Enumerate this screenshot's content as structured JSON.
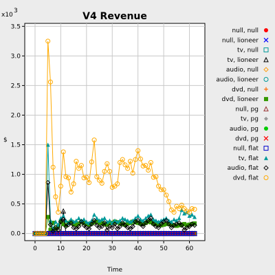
{
  "chart_data": {
    "type": "line",
    "title": "V4 Revenue",
    "xlabel": "Time",
    "ylabel": "$",
    "y_exponent": "x10",
    "y_exponent_power": "3",
    "xlim": [
      -4,
      66
    ],
    "ylim": [
      -120,
      3550
    ],
    "x_ticks": [
      0,
      10,
      20,
      30,
      40,
      50,
      60
    ],
    "x_tick_labels": [
      "0",
      "10",
      "20",
      "30",
      "40",
      "50",
      "60"
    ],
    "y_ticks": [
      0,
      500,
      1000,
      1500,
      2000,
      2500,
      3000,
      3500
    ],
    "y_tick_labels": [
      "0.0",
      "0.5",
      "1.0",
      "1.5",
      "2.0",
      "2.5",
      "3.0",
      "3.5"
    ],
    "grid": true,
    "legend_position": "right",
    "x": [
      0,
      1,
      2,
      3,
      4,
      5,
      6,
      7,
      8,
      9,
      10,
      11,
      12,
      13,
      14,
      15,
      16,
      17,
      18,
      19,
      20,
      21,
      22,
      23,
      24,
      25,
      26,
      27,
      28,
      29,
      30,
      31,
      32,
      33,
      34,
      35,
      36,
      37,
      38,
      39,
      40,
      41,
      42,
      43,
      44,
      45,
      46,
      47,
      48,
      49,
      50,
      51,
      52,
      53,
      54,
      55,
      56,
      57,
      58,
      59,
      60,
      61,
      62
    ],
    "series": [
      {
        "name": "null, null",
        "color": "#ff0000",
        "marker": "dot",
        "values": [
          0,
          0,
          0,
          0,
          0,
          0,
          0,
          0,
          0,
          0,
          0,
          0,
          0,
          0,
          0,
          0,
          0,
          0,
          0,
          0,
          0,
          0,
          0,
          0,
          0,
          0,
          0,
          0,
          0,
          0,
          0,
          0,
          0,
          0,
          0,
          0,
          0,
          0,
          0,
          0,
          0,
          0,
          0,
          0,
          0,
          0,
          0,
          0,
          0,
          0,
          0,
          0,
          0,
          0,
          0,
          0,
          0,
          0,
          0,
          0,
          0,
          0,
          0
        ]
      },
      {
        "name": "null, lioneer",
        "color": "#0000ff",
        "marker": "x",
        "values": [
          0,
          0,
          0,
          0,
          0,
          0,
          0,
          0,
          0,
          0,
          0,
          0,
          0,
          0,
          0,
          0,
          0,
          0,
          0,
          0,
          0,
          0,
          0,
          0,
          0,
          0,
          0,
          0,
          0,
          0,
          0,
          0,
          0,
          0,
          0,
          0,
          0,
          0,
          0,
          0,
          0,
          0,
          0,
          0,
          0,
          0,
          0,
          0,
          0,
          0,
          0,
          0,
          0,
          0,
          0,
          0,
          0,
          0,
          0,
          0,
          0,
          0,
          0
        ]
      },
      {
        "name": "tv, null",
        "color": "#009999",
        "marker": "square",
        "values": [
          0,
          0,
          0,
          0,
          0,
          0,
          0,
          0,
          0,
          0,
          0,
          0,
          0,
          0,
          0,
          0,
          0,
          0,
          0,
          0,
          0,
          0,
          0,
          0,
          0,
          0,
          0,
          0,
          0,
          0,
          0,
          0,
          0,
          0,
          0,
          0,
          0,
          0,
          0,
          0,
          0,
          0,
          0,
          0,
          0,
          0,
          0,
          0,
          0,
          0,
          0,
          0,
          0,
          0,
          0,
          0,
          0,
          0,
          0,
          0,
          0,
          0,
          0
        ]
      },
      {
        "name": "tv, lioneer",
        "color": "#000000",
        "marker": "triangle",
        "values": [
          0,
          0,
          0,
          0,
          0,
          0,
          0,
          0,
          0,
          0,
          0,
          380,
          0,
          0,
          0,
          0,
          0,
          0,
          0,
          0,
          0,
          0,
          0,
          0,
          0,
          0,
          0,
          0,
          0,
          0,
          0,
          0,
          0,
          0,
          0,
          0,
          0,
          0,
          0,
          0,
          0,
          0,
          0,
          0,
          0,
          0,
          0,
          0,
          0,
          0,
          0,
          0,
          0,
          0,
          0,
          0,
          0,
          0,
          0,
          0,
          0,
          0,
          0
        ]
      },
      {
        "name": "audio, null",
        "color": "#ff9900",
        "marker": "diamond",
        "values": [
          0,
          0,
          0,
          0,
          0,
          0,
          0,
          0,
          0,
          0,
          0,
          0,
          0,
          0,
          0,
          0,
          0,
          0,
          0,
          0,
          0,
          0,
          0,
          0,
          0,
          0,
          0,
          0,
          0,
          0,
          0,
          0,
          0,
          0,
          0,
          0,
          0,
          0,
          0,
          0,
          0,
          0,
          0,
          0,
          0,
          0,
          0,
          0,
          0,
          0,
          0,
          0,
          0,
          0,
          0,
          0,
          0,
          0,
          0,
          0,
          0,
          0,
          0
        ]
      },
      {
        "name": "audio, lioneer",
        "color": "#009999",
        "marker": "circle",
        "values": [
          0,
          0,
          0,
          0,
          0,
          0,
          0,
          0,
          0,
          0,
          0,
          0,
          0,
          0,
          0,
          0,
          0,
          0,
          0,
          0,
          0,
          0,
          0,
          0,
          0,
          0,
          0,
          0,
          0,
          0,
          0,
          0,
          0,
          0,
          0,
          0,
          0,
          0,
          0,
          0,
          0,
          0,
          0,
          0,
          0,
          0,
          0,
          0,
          0,
          0,
          0,
          0,
          0,
          0,
          0,
          0,
          0,
          0,
          0,
          0,
          0,
          0,
          0
        ]
      },
      {
        "name": "dvd, null",
        "color": "#ff6600",
        "marker": "plus",
        "values": [
          0,
          0,
          0,
          0,
          0,
          0,
          0,
          0,
          0,
          0,
          0,
          0,
          0,
          0,
          0,
          0,
          0,
          0,
          0,
          0,
          0,
          0,
          0,
          0,
          0,
          0,
          0,
          0,
          0,
          0,
          0,
          0,
          0,
          0,
          0,
          0,
          0,
          0,
          0,
          0,
          0,
          0,
          0,
          0,
          0,
          0,
          0,
          0,
          0,
          0,
          0,
          0,
          0,
          0,
          0,
          0,
          0,
          0,
          0,
          0,
          0,
          0,
          0
        ]
      },
      {
        "name": "dvd, lioneer",
        "color": "#339900",
        "marker": "filled-square",
        "values": [
          0,
          0,
          0,
          0,
          0,
          280,
          60,
          180,
          80,
          120,
          200,
          160,
          140,
          180,
          200,
          160,
          150,
          170,
          200,
          180,
          160,
          150,
          170,
          190,
          210,
          180,
          170,
          160,
          150,
          170,
          180,
          200,
          190,
          170,
          160,
          150,
          170,
          180,
          200,
          190,
          180,
          170,
          160,
          180,
          200,
          190,
          170,
          160,
          150,
          140,
          150,
          160,
          170,
          150,
          140,
          130,
          140,
          150,
          160,
          140,
          150,
          160,
          170
        ]
      },
      {
        "name": "null, pg",
        "color": "#993333",
        "marker": "triangle",
        "values": [
          0,
          0,
          0,
          0,
          0,
          0,
          0,
          0,
          0,
          0,
          0,
          0,
          0,
          0,
          0,
          0,
          0,
          0,
          0,
          0,
          0,
          0,
          0,
          0,
          0,
          0,
          0,
          0,
          0,
          0,
          0,
          0,
          0,
          0,
          0,
          0,
          0,
          0,
          0,
          0,
          0,
          0,
          0,
          0,
          0,
          0,
          0,
          0,
          0,
          0,
          0,
          0,
          0,
          0,
          0,
          0,
          0,
          0,
          0,
          0,
          0,
          0,
          0
        ]
      },
      {
        "name": "tv, pg",
        "color": "#999999",
        "marker": "filled-diamond",
        "values": [
          0,
          0,
          0,
          0,
          0,
          0,
          0,
          0,
          0,
          0,
          0,
          0,
          0,
          0,
          0,
          0,
          0,
          0,
          0,
          0,
          0,
          0,
          0,
          0,
          0,
          0,
          0,
          0,
          0,
          0,
          0,
          0,
          0,
          0,
          0,
          0,
          0,
          0,
          0,
          0,
          0,
          0,
          0,
          0,
          0,
          0,
          0,
          0,
          0,
          0,
          0,
          0,
          0,
          0,
          0,
          0,
          0,
          0,
          0,
          0,
          0,
          0,
          0
        ]
      },
      {
        "name": "audio, pg",
        "color": "#00cc00",
        "marker": "dot",
        "values": [
          0,
          0,
          0,
          0,
          0,
          0,
          0,
          0,
          0,
          0,
          0,
          0,
          0,
          0,
          0,
          0,
          0,
          0,
          0,
          0,
          0,
          0,
          0,
          0,
          0,
          0,
          0,
          0,
          0,
          0,
          0,
          0,
          0,
          0,
          0,
          0,
          0,
          0,
          0,
          0,
          0,
          0,
          0,
          0,
          0,
          0,
          0,
          0,
          0,
          0,
          0,
          0,
          0,
          0,
          0,
          0,
          0,
          0,
          0,
          0,
          0,
          0,
          0
        ]
      },
      {
        "name": "dvd, pg",
        "color": "#ff0000",
        "marker": "x",
        "values": [
          0,
          0,
          0,
          0,
          0,
          0,
          0,
          0,
          0,
          0,
          0,
          0,
          0,
          0,
          0,
          0,
          0,
          0,
          0,
          0,
          0,
          0,
          0,
          0,
          0,
          0,
          0,
          0,
          0,
          0,
          0,
          0,
          0,
          0,
          0,
          0,
          0,
          0,
          0,
          0,
          0,
          0,
          0,
          0,
          0,
          0,
          0,
          0,
          0,
          0,
          0,
          0,
          0,
          0,
          0,
          0,
          0,
          0,
          0,
          0,
          0,
          0,
          0
        ]
      },
      {
        "name": "null, flat",
        "color": "#0000cc",
        "marker": "square",
        "values": [
          0,
          0,
          0,
          0,
          0,
          0,
          0,
          0,
          0,
          0,
          0,
          0,
          0,
          0,
          0,
          0,
          0,
          0,
          0,
          0,
          0,
          0,
          0,
          0,
          0,
          0,
          0,
          0,
          0,
          0,
          0,
          0,
          0,
          0,
          0,
          0,
          0,
          0,
          0,
          0,
          0,
          0,
          0,
          0,
          0,
          0,
          0,
          0,
          0,
          0,
          0,
          0,
          0,
          0,
          0,
          0,
          0,
          0,
          0,
          0,
          0,
          0,
          0
        ]
      },
      {
        "name": "tv, flat",
        "color": "#009999",
        "marker": "filled-triangle",
        "values": [
          0,
          0,
          0,
          0,
          0,
          1500,
          220,
          80,
          200,
          150,
          260,
          300,
          220,
          180,
          240,
          200,
          220,
          260,
          220,
          240,
          200,
          180,
          220,
          320,
          260,
          220,
          240,
          260,
          200,
          220,
          180,
          220,
          200,
          220,
          260,
          240,
          220,
          200,
          220,
          260,
          300,
          240,
          220,
          260,
          300,
          320,
          240,
          220,
          200,
          220,
          240,
          260,
          220,
          200,
          240,
          220,
          260,
          400,
          340,
          360,
          300,
          320,
          280
        ]
      },
      {
        "name": "audio, flat",
        "color": "#000000",
        "marker": "diamond",
        "values": [
          0,
          0,
          0,
          0,
          0,
          860,
          150,
          40,
          100,
          60,
          200,
          240,
          120,
          150,
          180,
          100,
          80,
          120,
          200,
          140,
          100,
          80,
          160,
          220,
          140,
          100,
          120,
          180,
          60,
          120,
          100,
          160,
          80,
          120,
          180,
          140,
          100,
          80,
          120,
          200,
          220,
          160,
          120,
          180,
          220,
          260,
          160,
          120,
          100,
          160,
          200,
          220,
          160,
          100,
          140,
          160,
          180,
          140,
          60,
          100,
          120,
          160,
          140
        ]
      },
      {
        "name": "dvd, flat",
        "color": "#ffaa00",
        "marker": "circle",
        "values": [
          0,
          0,
          0,
          0,
          0,
          3250,
          2560,
          1120,
          620,
          360,
          800,
          1380,
          960,
          940,
          700,
          840,
          1220,
          1100,
          1150,
          940,
          950,
          860,
          1210,
          1580,
          960,
          900,
          850,
          1050,
          1180,
          1050,
          780,
          800,
          840,
          1200,
          1250,
          1160,
          1100,
          1220,
          1020,
          1250,
          1400,
          1260,
          1140,
          1150,
          1070,
          1200,
          950,
          960,
          800,
          740,
          740,
          650,
          540,
          400,
          360,
          460,
          420,
          480,
          420,
          380,
          360,
          420,
          410
        ]
      }
    ]
  }
}
